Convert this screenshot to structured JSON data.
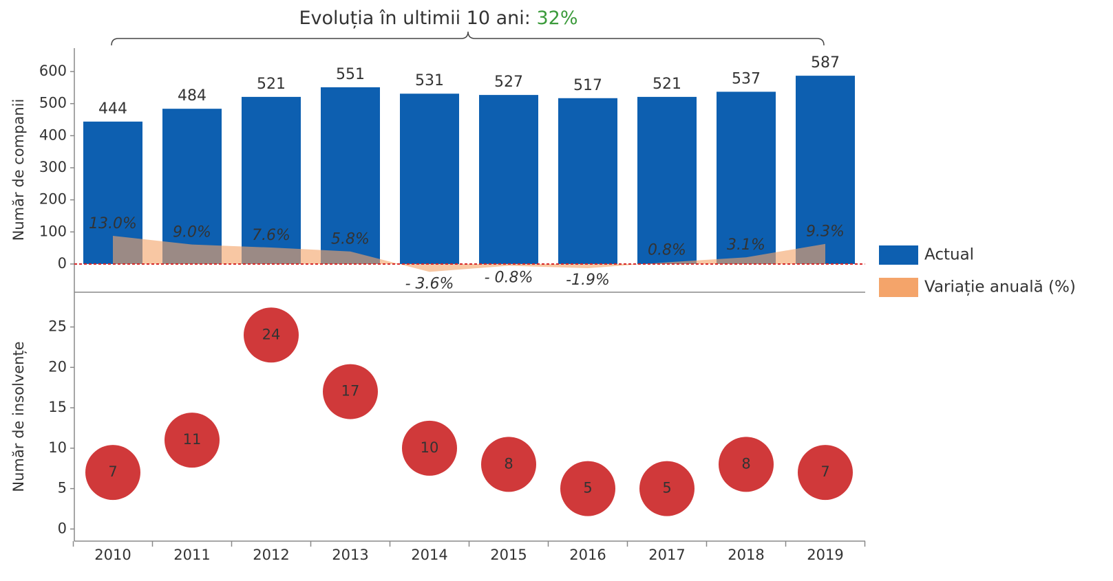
{
  "chart_data": [
    {
      "type": "bar",
      "title": "Evoluția în ultimii 10 ani:",
      "title_highlight": "32%",
      "title_highlight_color": "#3a9a3a",
      "y_label": "Număr de companii",
      "categories": [
        "2010",
        "2011",
        "2012",
        "2013",
        "2014",
        "2015",
        "2016",
        "2017",
        "2018",
        "2019"
      ],
      "series": [
        {
          "name": "Actual",
          "color": "#0d5fb0",
          "values": [
            444,
            484,
            521,
            551,
            531,
            527,
            517,
            521,
            537,
            587
          ]
        },
        {
          "name": "Variație anuală (%)",
          "color": "#f4a46a",
          "type": "area",
          "axis": "y2",
          "values": [
            13.0,
            9.0,
            7.6,
            5.8,
            -3.6,
            -0.8,
            -1.9,
            0.8,
            3.1,
            9.3
          ],
          "value_labels": [
            "13.0%",
            "9.0%",
            "7.6%",
            "5.8%",
            "- 3.6%",
            "- 0.8%",
            "-1.9%",
            "0.8%",
            "3.1%",
            "9.3%"
          ]
        }
      ],
      "ylim": [
        -88,
        673
      ],
      "yticks": [
        0,
        100,
        200,
        300,
        400,
        500,
        600
      ],
      "y2lim": [
        -13,
        99.6
      ],
      "zero_line": {
        "value": 0,
        "color": "#d62728"
      },
      "legend": "right"
    },
    {
      "type": "scatter",
      "y_label": "Număr de insolvențe",
      "color": "#d0393a",
      "values": [
        7,
        11,
        24,
        17,
        10,
        8,
        5,
        5,
        8,
        7
      ],
      "ylim": [
        -1.5,
        29.3
      ],
      "yticks": [
        0,
        5,
        10,
        15,
        20,
        25
      ]
    }
  ]
}
